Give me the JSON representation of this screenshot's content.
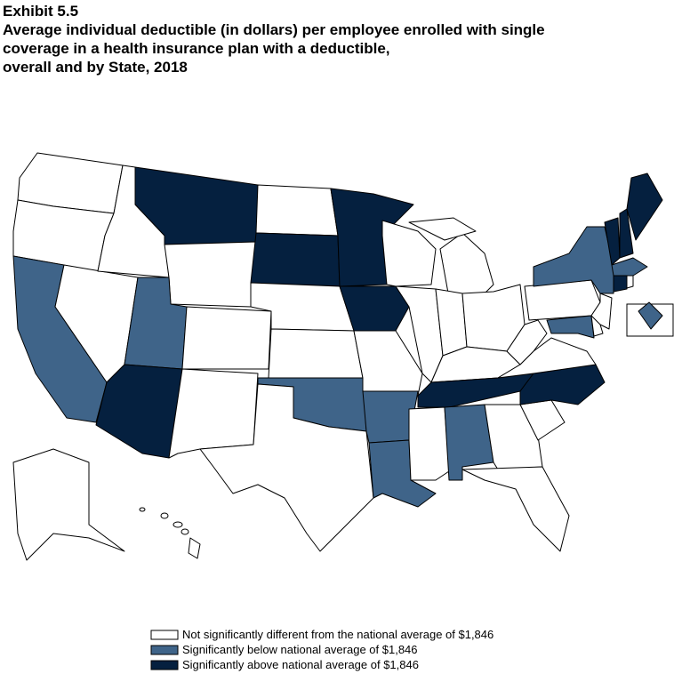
{
  "header": {
    "exhibit": "Exhibit 5.5",
    "title_lines": [
      "Average individual deductible (in dollars) per employee enrolled with single",
      "coverage in a health insurance plan with a deductible,",
      "overall and by State, 2018"
    ]
  },
  "legend": {
    "items": [
      {
        "label": "Not significantly different from the national average of $1,846",
        "color": "#ffffff"
      },
      {
        "label": "Significantly below national average of $1,846",
        "color": "#3f6489"
      },
      {
        "label": "Significantly above national average of $1,846",
        "color": "#05203f"
      }
    ]
  }
}
